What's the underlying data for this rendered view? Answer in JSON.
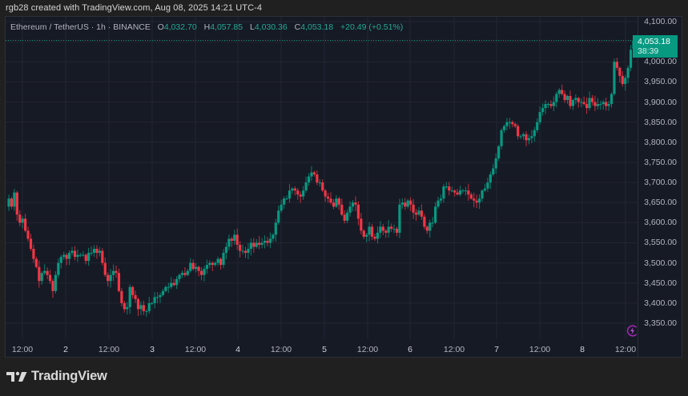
{
  "credit_line": "rgb28 created with TradingView.com, Aug 08, 2025 14:21 UTC-4",
  "legend": {
    "symbol": "Ethereum / TetherUS · 1h · BINANCE",
    "open_label": "O",
    "open": "4,032.70",
    "high_label": "H",
    "high": "4,057.85",
    "low_label": "L",
    "low": "4,030.36",
    "close_label": "C",
    "close": "4,053.18",
    "change": "+20.49 (+0.51%)"
  },
  "price_tag": {
    "price": "4,053.18",
    "countdown": "38:39"
  },
  "brand": {
    "name": "TradingView",
    "icon": "tradingview-logo-icon"
  },
  "colors": {
    "up": "#089981",
    "down": "#f23645",
    "background": "#161a25",
    "grid": "#232632",
    "text": "#b2b5be",
    "accent": "#9c27b0"
  },
  "chart_data": {
    "type": "candlestick",
    "title": "Ethereum / TetherUS · 1h · BINANCE",
    "xlabel": "",
    "ylabel": "",
    "ylim": [
      3320,
      4120
    ],
    "grid": true,
    "legend_position": "top-left",
    "y_ticks": [
      "4,100.00",
      "4,000.00",
      "3,950.00",
      "3,900.00",
      "3,850.00",
      "3,800.00",
      "3,750.00",
      "3,700.00",
      "3,650.00",
      "3,600.00",
      "3,550.00",
      "3,500.00",
      "3,450.00",
      "3,400.00",
      "3,350.00"
    ],
    "x_ticks": [
      "12:00",
      "2",
      "12:00",
      "3",
      "12:00",
      "4",
      "12:00",
      "5",
      "12:00",
      "6",
      "12:00",
      "7",
      "12:00",
      "8",
      "12:00"
    ],
    "last_price": 4053.18,
    "closes": [
      3660,
      3640,
      3675,
      3620,
      3600,
      3610,
      3580,
      3560,
      3535,
      3510,
      3490,
      3455,
      3475,
      3480,
      3470,
      3455,
      3430,
      3470,
      3500,
      3515,
      3520,
      3510,
      3525,
      3530,
      3515,
      3520,
      3520,
      3520,
      3505,
      3525,
      3525,
      3535,
      3525,
      3530,
      3500,
      3470,
      3455,
      3470,
      3480,
      3475,
      3430,
      3400,
      3385,
      3390,
      3440,
      3420,
      3410,
      3385,
      3395,
      3380,
      3380,
      3400,
      3400,
      3415,
      3415,
      3420,
      3430,
      3440,
      3440,
      3450,
      3445,
      3460,
      3470,
      3475,
      3470,
      3480,
      3500,
      3485,
      3490,
      3480,
      3470,
      3485,
      3495,
      3500,
      3495,
      3500,
      3510,
      3495,
      3525,
      3540,
      3560,
      3555,
      3570,
      3545,
      3530,
      3530,
      3525,
      3535,
      3550,
      3540,
      3550,
      3545,
      3550,
      3555,
      3550,
      3560,
      3570,
      3600,
      3630,
      3645,
      3660,
      3660,
      3680,
      3685,
      3680,
      3670,
      3665,
      3680,
      3700,
      3715,
      3725,
      3720,
      3700,
      3700,
      3680,
      3665,
      3660,
      3650,
      3640,
      3660,
      3645,
      3620,
      3605,
      3625,
      3640,
      3650,
      3645,
      3610,
      3580,
      3565,
      3570,
      3590,
      3565,
      3560,
      3575,
      3590,
      3580,
      3575,
      3590,
      3585,
      3585,
      3575,
      3645,
      3650,
      3640,
      3655,
      3645,
      3625,
      3620,
      3630,
      3615,
      3590,
      3580,
      3600,
      3600,
      3640,
      3655,
      3660,
      3690,
      3690,
      3680,
      3680,
      3675,
      3670,
      3680,
      3680,
      3680,
      3670,
      3660,
      3655,
      3650,
      3660,
      3680,
      3685,
      3700,
      3720,
      3735,
      3760,
      3790,
      3830,
      3840,
      3850,
      3850,
      3845,
      3840,
      3815,
      3815,
      3820,
      3805,
      3810,
      3815,
      3830,
      3850,
      3875,
      3885,
      3895,
      3895,
      3890,
      3900,
      3920,
      3930,
      3920,
      3905,
      3915,
      3890,
      3905,
      3910,
      3900,
      3900,
      3895,
      3885,
      3910,
      3900,
      3890,
      3895,
      3895,
      3900,
      3890,
      3895,
      3920,
      4000,
      3985,
      3965,
      3945,
      3960,
      3985,
      4030,
      4053.18
    ]
  }
}
